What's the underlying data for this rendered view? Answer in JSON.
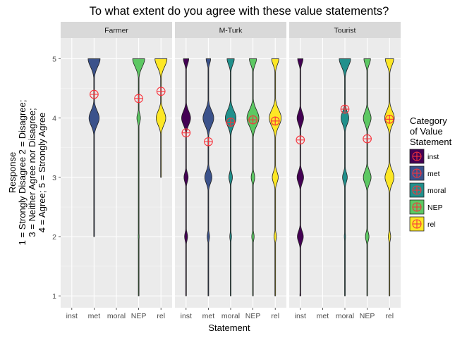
{
  "chart_data": {
    "type": "violin",
    "title": "To what extent do you agree with these value statements?",
    "xlabel": "Statement",
    "ylabel": [
      "Response",
      "1 = Strongly Disagree 2 = Disagree;",
      "3 = Neither Agree nor Disagree;",
      "4 = Agree; 5 = Strongly Agree"
    ],
    "categories": [
      "inst",
      "met",
      "moral",
      "NEP",
      "rel"
    ],
    "y_ticks": [
      1,
      2,
      3,
      4,
      5
    ],
    "ylim": [
      0.8,
      5.35
    ],
    "grid": true,
    "colors": {
      "inst": "#440154",
      "met": "#3b528b",
      "moral": "#21908c",
      "NEP": "#5dc863",
      "rel": "#fde725",
      "mean_marker": "#f8333c",
      "panel_bg": "#ebebeb",
      "strip_bg": "#d9d9d9",
      "grid": "#ffffff"
    },
    "legend": {
      "title": [
        "Category",
        "of Value",
        "Statement"
      ],
      "position": "right",
      "items": [
        "inst",
        "met",
        "moral",
        "NEP",
        "rel"
      ]
    },
    "panels": [
      {
        "name": "Farmer",
        "violins": [
          {
            "category": "met",
            "min": 2,
            "density": [
              0.02,
              0.05,
              0.85,
              1.0
            ],
            "mean": 4.4
          },
          {
            "category": "NEP",
            "min": 1,
            "density": [
              0.06,
              0.08,
              0.05,
              0.3,
              1.0
            ],
            "mean": 4.33
          },
          {
            "category": "rel",
            "min": 3,
            "density": [
              0.05,
              0.8,
              1.0
            ],
            "mean": 4.45
          }
        ]
      },
      {
        "name": "M-Turk",
        "violins": [
          {
            "category": "inst",
            "min": 1,
            "density": [
              0.02,
              0.25,
              0.35,
              0.75,
              0.45
            ],
            "mean": 3.75
          },
          {
            "category": "met",
            "min": 1,
            "density": [
              0.04,
              0.2,
              0.6,
              0.9,
              0.38
            ],
            "mean": 3.6
          },
          {
            "category": "moral",
            "min": 1,
            "density": [
              0.02,
              0.15,
              0.3,
              0.9,
              0.6
            ],
            "mean": 3.93
          },
          {
            "category": "NEP",
            "min": 1,
            "density": [
              0.02,
              0.2,
              0.3,
              1.0,
              0.6
            ],
            "mean": 3.97
          },
          {
            "category": "rel",
            "min": 1,
            "density": [
              0.02,
              0.2,
              0.5,
              1.0,
              0.6
            ],
            "mean": 3.95
          }
        ]
      },
      {
        "name": "Tourist",
        "violins": [
          {
            "category": "inst",
            "min": 1,
            "density": [
              0.08,
              0.5,
              0.55,
              0.55,
              0.45
            ],
            "mean": 3.63
          },
          {
            "category": "moral",
            "min": 1,
            "density": [
              0.02,
              0.1,
              0.4,
              0.65,
              0.95
            ],
            "mean": 4.15
          },
          {
            "category": "NEP",
            "min": 1,
            "density": [
              0.02,
              0.3,
              0.65,
              0.65,
              0.55
            ],
            "mean": 3.65
          },
          {
            "category": "rel",
            "min": 1,
            "density": [
              0.02,
              0.2,
              0.75,
              0.8,
              0.7
            ],
            "mean": 3.98
          }
        ]
      }
    ]
  }
}
